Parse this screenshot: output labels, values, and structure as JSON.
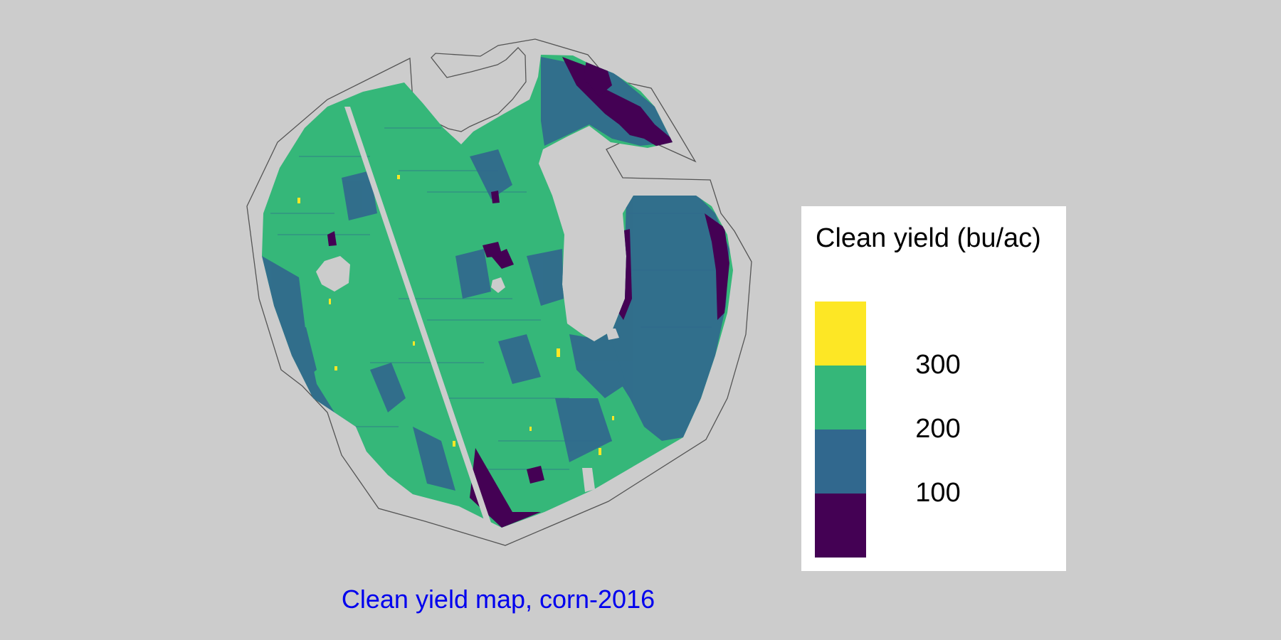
{
  "map": {
    "caption": "Clean yield map, corn-2016",
    "background_color": "#cccccc",
    "boundary_color": "#555555",
    "legend": {
      "title": "Clean yield (bu/ac)",
      "classes": [
        {
          "name": "highest-yield-class",
          "color": "#fde725"
        },
        {
          "name": "high-yield-class",
          "color": "#35b779"
        },
        {
          "name": "medium-yield-class",
          "color": "#31688e"
        },
        {
          "name": "low-yield-class",
          "color": "#440154"
        }
      ],
      "breaks": [
        "300",
        "200",
        "100"
      ]
    },
    "dominant_yield_color": "#35b779"
  }
}
